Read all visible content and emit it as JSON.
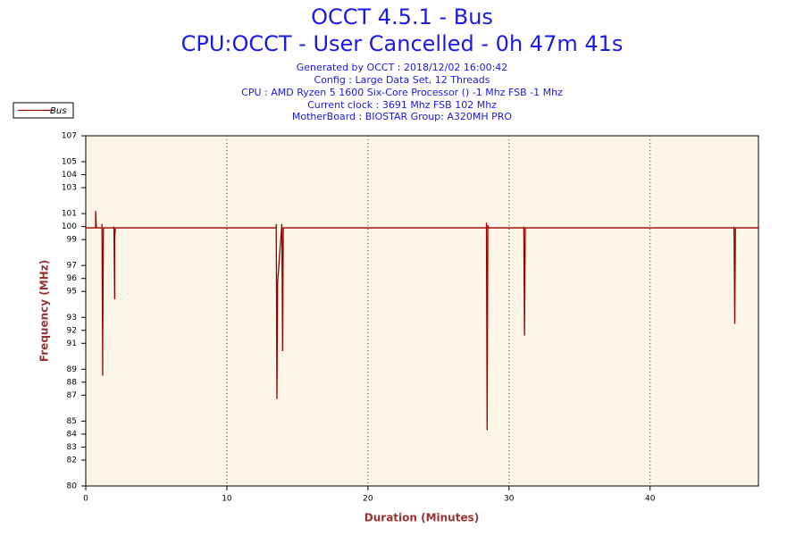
{
  "chart_data": {
    "type": "line",
    "title": "OCCT 4.5.1 - Bus",
    "subtitle": "CPU:OCCT - User Cancelled - 0h 47m 41s",
    "info": [
      "Generated by OCCT : 2018/12/02 16:00:42",
      "Config : Large Data Set, 12 Threads",
      "CPU : AMD Ryzen 5 1600 Six-Core Processor () -1 Mhz FSB -1 Mhz",
      "Current clock : 3691 Mhz FSB 102 Mhz",
      "MotherBoard : BIOSTAR Group: A320MH PRO"
    ],
    "x_label": "Duration (Minutes)",
    "y_label": "Frequency (MHz)",
    "xlim": [
      0,
      47.68
    ],
    "xticks": [
      0,
      10,
      20,
      30,
      40
    ],
    "ylim": [
      80,
      107
    ],
    "yticks": [
      80,
      82,
      83,
      84,
      85,
      87,
      88,
      89,
      91,
      92,
      93,
      95,
      96,
      97,
      99,
      100,
      101,
      103,
      104,
      105,
      107
    ],
    "x_grid": true,
    "legend": "top-left",
    "series": [
      {
        "name": "Bus",
        "color": "#990000",
        "x": [
          0,
          0.7,
          0.7,
          0.75,
          1.15,
          1.15,
          1.2,
          1.2,
          1.25,
          2.0,
          2.0,
          2.05,
          2.05,
          2.1,
          13.5,
          13.5,
          13.55,
          13.6,
          13.9,
          13.95,
          14.0,
          28.4,
          28.4,
          28.45,
          28.5,
          28.55,
          31.05,
          31.05,
          31.1,
          31.15,
          45.95,
          45.95,
          46.0,
          46.05,
          47.68
        ],
        "values": [
          99.9,
          99.9,
          101.2,
          99.9,
          99.9,
          100.2,
          88.5,
          90.8,
          99.9,
          99.9,
          100,
          94.4,
          99.1,
          99.9,
          99.9,
          100.2,
          86.7,
          95.7,
          100.2,
          90.4,
          99.9,
          99.9,
          100.3,
          84.3,
          100.1,
          99.9,
          99.9,
          100,
          91.6,
          99.9,
          99.9,
          100,
          92.5,
          99.9,
          99.9
        ]
      }
    ]
  }
}
